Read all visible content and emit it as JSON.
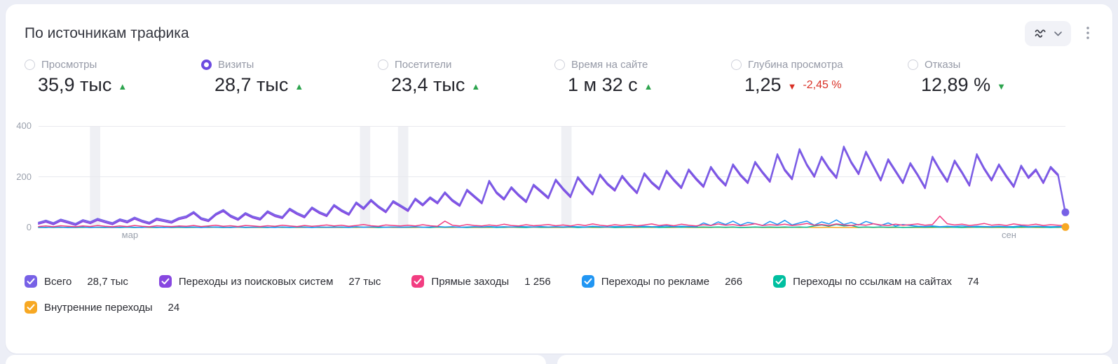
{
  "colors": {
    "accent": "#6C4BE0",
    "positive": "#2DA44E",
    "negative": "#D93025",
    "page_bg": "#ECEEF6"
  },
  "header": {
    "title": "По источникам трафика"
  },
  "metrics": [
    {
      "label": "Просмотры",
      "value": "35,9 тыс",
      "arrow": "▲",
      "trend": "up",
      "trend_color": "green",
      "selected": false
    },
    {
      "label": "Визиты",
      "value": "28,7 тыс",
      "arrow": "▲",
      "trend": "up",
      "trend_color": "green",
      "selected": true
    },
    {
      "label": "Посетители",
      "value": "23,4 тыс",
      "arrow": "▲",
      "trend": "up",
      "trend_color": "green",
      "selected": false
    },
    {
      "label": "Время на сайте",
      "value": "1 м 32 с",
      "arrow": "▲",
      "trend": "up",
      "trend_color": "green",
      "selected": false
    },
    {
      "label": "Глубина просмотра",
      "value": "1,25",
      "arrow": "▼",
      "trend": "down",
      "trend_color": "red",
      "delta": "-2,45 %",
      "selected": false
    },
    {
      "label": "Отказы",
      "value": "12,89 %",
      "arrow": "▼",
      "trend": "down",
      "trend_color": "green",
      "selected": false
    }
  ],
  "chart_data": {
    "type": "line",
    "ylim": [
      0,
      400
    ],
    "yticks": [
      0,
      200,
      400
    ],
    "xticks": [
      {
        "label": "мар",
        "pos": 0.089
      },
      {
        "label": "сен",
        "pos": 0.945
      }
    ],
    "bands": [
      {
        "pos": 0.05,
        "width": 0.01
      },
      {
        "pos": 0.313,
        "width": 0.01
      },
      {
        "pos": 0.35,
        "width": 0.01
      },
      {
        "pos": 0.509,
        "width": 0.01
      }
    ],
    "band_color": "#EFF0F4",
    "grid_color": "#E8E9EE",
    "end_dots": [
      "Всего",
      "Внутренние переходы"
    ],
    "series": [
      {
        "name": "Всего",
        "color": "#7761E6",
        "values": [
          20,
          28,
          18,
          32,
          24,
          15,
          30,
          22,
          35,
          26,
          18,
          33,
          25,
          40,
          28,
          20,
          36,
          30,
          24,
          38,
          45,
          62,
          38,
          30,
          55,
          70,
          48,
          35,
          58,
          44,
          36,
          65,
          50,
          42,
          75,
          58,
          45,
          80,
          62,
          50,
          90,
          70,
          55,
          100,
          78,
          110,
          85,
          65,
          105,
          88,
          70,
          115,
          92,
          120,
          100,
          140,
          110,
          90,
          150,
          125,
          100,
          185,
          140,
          115,
          160,
          130,
          105,
          170,
          145,
          120,
          190,
          155,
          125,
          200,
          165,
          135,
          210,
          175,
          150,
          205,
          170,
          140,
          215,
          180,
          155,
          225,
          190,
          160,
          230,
          195,
          165,
          240,
          200,
          170,
          250,
          210,
          180,
          260,
          220,
          185,
          290,
          230,
          195,
          310,
          250,
          205,
          280,
          235,
          200,
          320,
          260,
          215,
          300,
          245,
          190,
          270,
          225,
          180,
          255,
          210,
          160,
          280,
          230,
          185,
          265,
          220,
          170,
          290,
          235,
          190,
          250,
          205,
          165,
          245,
          200,
          230,
          180,
          240,
          210,
          60
        ]
      },
      {
        "name": "Переходы из поисковых систем",
        "color": "#8747E0",
        "values": [
          14,
          22,
          12,
          26,
          18,
          9,
          24,
          16,
          29,
          20,
          12,
          27,
          19,
          34,
          22,
          14,
          30,
          24,
          18,
          32,
          39,
          56,
          32,
          24,
          49,
          64,
          42,
          29,
          52,
          38,
          30,
          59,
          44,
          36,
          69,
          52,
          39,
          74,
          56,
          44,
          84,
          64,
          49,
          94,
          72,
          104,
          79,
          59,
          99,
          82,
          64,
          109,
          86,
          114,
          94,
          134,
          104,
          84,
          144,
          119,
          94,
          179,
          134,
          109,
          154,
          124,
          99,
          164,
          139,
          114,
          184,
          149,
          119,
          194,
          159,
          129,
          204,
          169,
          144,
          199,
          164,
          134,
          209,
          174,
          149,
          219,
          184,
          154,
          224,
          189,
          159,
          234,
          194,
          164,
          244,
          204,
          174,
          254,
          214,
          179,
          284,
          224,
          189,
          304,
          244,
          199,
          274,
          229,
          194,
          314,
          254,
          209,
          294,
          239,
          184,
          264,
          219,
          174,
          249,
          204,
          154,
          274,
          224,
          179,
          259,
          214,
          164,
          284,
          229,
          184,
          244,
          199,
          159,
          239,
          194,
          224,
          174,
          234,
          204,
          54
        ]
      },
      {
        "name": "Прямые заходы",
        "color": "#F23D81",
        "values": [
          4,
          6,
          3,
          7,
          5,
          3,
          6,
          4,
          8,
          5,
          3,
          6,
          4,
          8,
          5,
          3,
          7,
          5,
          4,
          6,
          5,
          8,
          4,
          6,
          9,
          5,
          7,
          4,
          8,
          6,
          4,
          7,
          5,
          9,
          6,
          4,
          8,
          5,
          7,
          10,
          6,
          9,
          5,
          8,
          12,
          7,
          5,
          10,
          8,
          6,
          9,
          6,
          11,
          7,
          5,
          25,
          9,
          6,
          12,
          8,
          6,
          10,
          7,
          13,
          8,
          6,
          11,
          7,
          9,
          12,
          7,
          10,
          6,
          12,
          8,
          14,
          9,
          6,
          11,
          8,
          12,
          7,
          10,
          14,
          8,
          11,
          7,
          13,
          9,
          6,
          11,
          8,
          14,
          9,
          12,
          7,
          10,
          15,
          8,
          11,
          9,
          13,
          8,
          11,
          16,
          9,
          12,
          8,
          14,
          10,
          8,
          12,
          9,
          15,
          10,
          8,
          13,
          9,
          11,
          14,
          9,
          12,
          45,
          15,
          10,
          13,
          8,
          11,
          16,
          9,
          12,
          8,
          14,
          10,
          9,
          13,
          8,
          11,
          9,
          7
        ]
      },
      {
        "name": "Переходы по рекламе",
        "color": "#2196F3",
        "values": [
          1,
          0,
          2,
          1,
          0,
          1,
          2,
          0,
          1,
          1,
          0,
          1,
          2,
          1,
          0,
          2,
          1,
          0,
          1,
          2,
          1,
          2,
          0,
          1,
          2,
          1,
          0,
          2,
          1,
          1,
          2,
          1,
          0,
          2,
          1,
          2,
          1,
          0,
          2,
          1,
          1,
          2,
          1,
          3,
          1,
          2,
          3,
          1,
          2,
          1,
          2,
          3,
          1,
          2,
          4,
          2,
          3,
          1,
          2,
          3,
          2,
          4,
          2,
          3,
          2,
          4,
          3,
          2,
          4,
          2,
          3,
          2,
          4,
          3,
          2,
          5,
          3,
          2,
          4,
          3,
          4,
          3,
          5,
          3,
          4,
          6,
          3,
          5,
          4,
          3,
          18,
          8,
          22,
          12,
          25,
          10,
          20,
          15,
          8,
          24,
          12,
          28,
          10,
          18,
          25,
          9,
          22,
          14,
          30,
          12,
          20,
          10,
          24,
          15,
          8,
          18,
          6,
          12,
          8,
          5,
          4,
          6,
          3,
          5,
          4,
          6,
          3,
          5,
          4,
          3,
          5,
          3,
          4,
          6,
          3,
          5,
          4,
          3,
          4,
          2
        ]
      },
      {
        "name": "Переходы по ссылкам на сайтах",
        "color": "#00BFA0",
        "values": [
          0,
          1,
          0,
          1,
          0,
          0,
          1,
          0,
          1,
          0,
          1,
          0,
          1,
          0,
          1,
          1,
          0,
          1,
          0,
          1,
          0,
          1,
          0,
          2,
          1,
          0,
          1,
          2,
          0,
          1,
          1,
          0,
          2,
          1,
          0,
          1,
          2,
          0,
          1,
          1,
          2,
          1,
          0,
          2,
          1,
          2,
          0,
          1,
          2,
          1,
          1,
          2,
          1,
          0,
          2,
          1,
          2,
          1,
          0,
          2,
          1,
          2,
          0,
          1,
          2,
          1,
          0,
          2,
          1,
          1,
          2,
          1,
          2,
          0,
          1,
          2,
          1,
          2,
          0,
          1,
          1,
          2,
          1,
          2,
          0,
          1,
          2,
          1,
          2,
          1,
          2,
          1,
          2,
          1,
          2,
          0,
          1,
          2,
          1,
          2,
          1,
          2,
          1,
          2,
          1,
          6,
          10,
          5,
          12,
          6,
          8,
          1,
          2,
          1,
          2,
          1,
          2,
          0,
          1,
          2,
          1,
          2,
          1,
          2,
          1,
          0,
          2,
          1,
          2,
          1,
          2,
          1,
          0,
          2,
          1,
          2,
          1,
          0,
          1,
          1
        ]
      },
      {
        "name": "Внутренние переходы",
        "color": "#F7A823",
        "values": [
          0,
          0,
          1,
          0,
          1,
          0,
          0,
          1,
          0,
          0,
          0,
          0,
          1,
          0,
          1,
          0,
          0,
          1,
          0,
          0,
          0,
          0,
          1,
          0,
          1,
          0,
          0,
          1,
          0,
          0,
          0,
          0,
          1,
          0,
          1,
          0,
          0,
          1,
          0,
          0,
          0,
          0,
          1,
          0,
          1,
          0,
          0,
          1,
          0,
          0,
          0,
          0,
          1,
          0,
          1,
          0,
          0,
          1,
          0,
          0,
          0,
          0,
          1,
          0,
          1,
          0,
          0,
          1,
          0,
          0,
          0,
          0,
          1,
          0,
          1,
          0,
          0,
          1,
          0,
          0,
          0,
          0,
          1,
          0,
          1,
          0,
          0,
          1,
          0,
          0,
          0,
          0,
          1,
          0,
          1,
          0,
          0,
          1,
          0,
          0,
          0,
          0,
          1,
          0,
          1,
          0,
          0,
          1,
          0,
          0,
          0,
          0,
          1,
          0,
          1,
          0,
          0,
          1,
          0,
          0,
          0,
          0,
          1,
          0,
          1,
          0,
          0,
          1,
          0,
          0,
          0,
          0,
          1,
          0,
          1,
          0,
          0,
          1,
          0,
          2
        ]
      }
    ]
  },
  "legend": [
    {
      "label": "Всего",
      "value": "28,7 тыс",
      "color": "#7761E6"
    },
    {
      "label": "Переходы из поисковых систем",
      "value": "27 тыс",
      "color": "#8747E0"
    },
    {
      "label": "Прямые заходы",
      "value": "1 256",
      "color": "#F23D81"
    },
    {
      "label": "Переходы по рекламе",
      "value": "266",
      "color": "#2196F3"
    },
    {
      "label": "Переходы по ссылкам на сайтах",
      "value": "74",
      "color": "#00BFA0"
    },
    {
      "label": "Внутренние переходы",
      "value": "24",
      "color": "#F7A823"
    }
  ]
}
